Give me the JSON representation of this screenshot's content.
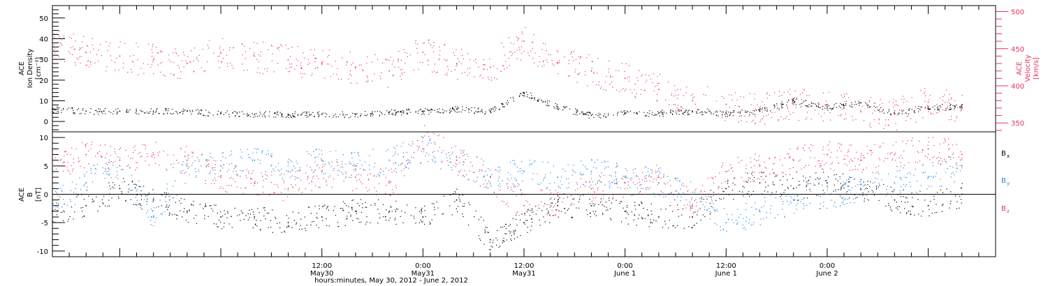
{
  "colors": {
    "black": "#000000",
    "pink": "#e8325a",
    "blue": "#1e88e5"
  },
  "chart_data": [
    {
      "type": "scatter",
      "panel": "plasma",
      "ylabel_left": [
        "ACE",
        "Ion Density",
        "[cm⁻³]"
      ],
      "ylabel_right": [
        "ACE",
        "Velocity",
        "[km/s]"
      ],
      "xrange_hours": [
        -20,
        92
      ],
      "ylim_left": [
        -5,
        56
      ],
      "ylim_right": [
        338,
        508
      ],
      "left_ticks": [
        0,
        10,
        20,
        30,
        40,
        50
      ],
      "right_ticks": [
        350,
        400,
        450,
        500
      ],
      "series": [
        {
          "name": "",
          "axis": "left",
          "color": "#000000",
          "x": [
            -20,
            -16,
            -12,
            -8,
            -4,
            0,
            4,
            8,
            12,
            16,
            20,
            24,
            28,
            32,
            36,
            40,
            44,
            48,
            52,
            56,
            60,
            64,
            68,
            72,
            76,
            80,
            84,
            88
          ],
          "y": [
            6,
            5,
            5,
            5,
            5,
            4,
            3.5,
            3.5,
            3.5,
            3.5,
            4.5,
            5,
            6,
            5,
            14,
            7,
            3,
            4,
            4,
            5,
            4,
            5,
            10,
            7,
            9,
            4,
            7,
            7
          ]
        },
        {
          "name": "",
          "axis": "right",
          "color": "#e8325a",
          "x": [
            -20,
            -16,
            -12,
            -8,
            -4,
            0,
            4,
            8,
            12,
            16,
            20,
            24,
            28,
            32,
            36,
            40,
            44,
            48,
            52,
            56,
            60,
            64,
            68,
            72,
            76,
            80,
            84,
            88
          ],
          "y": [
            455,
            445,
            440,
            435,
            430,
            445,
            440,
            435,
            430,
            425,
            420,
            445,
            430,
            425,
            460,
            430,
            420,
            410,
            395,
            380,
            375,
            370,
            375,
            375,
            365,
            362,
            378,
            370
          ]
        }
      ]
    },
    {
      "type": "scatter",
      "panel": "magnetic",
      "ylabel_left": [
        "ACE",
        "B",
        "[nT]"
      ],
      "xrange_hours": [
        -20,
        92
      ],
      "ylim": [
        -11,
        11
      ],
      "ticks": [
        -10,
        -5,
        0,
        5,
        10
      ],
      "x_tick_labels": [
        {
          "hours": 12,
          "time": "12:00",
          "date": "May30"
        },
        {
          "hours": 24,
          "time": "0:00",
          "date": "May31"
        },
        {
          "hours": 36,
          "time": "12:00",
          "date": "May31"
        },
        {
          "hours": 48,
          "time": "0:00",
          "date": "June 1"
        },
        {
          "hours": 60,
          "time": "12:00",
          "date": "June 1"
        },
        {
          "hours": 72,
          "time": "0:00",
          "date": "June 2"
        }
      ],
      "xlabel": "hours:minutes, May 30, 2012 - June  2, 2012",
      "series": [
        {
          "name": "Bx",
          "color": "#000000",
          "x": [
            -20,
            -16,
            -12,
            -8,
            -4,
            0,
            4,
            8,
            12,
            16,
            20,
            24,
            28,
            32,
            36,
            40,
            44,
            48,
            52,
            56,
            60,
            64,
            68,
            72,
            76,
            80,
            84,
            88
          ],
          "y": [
            -3,
            -2,
            1,
            -1,
            -3,
            -4,
            -4,
            -5,
            -4,
            -3,
            -3,
            -4,
            -1,
            -8,
            -5,
            -2,
            -2,
            -3,
            -4,
            -4,
            1,
            2,
            1,
            2,
            1,
            -1,
            -2,
            0
          ]
        },
        {
          "name": "By",
          "color": "#1e88e5",
          "x": [
            -20,
            -16,
            -12,
            -8,
            -4,
            0,
            4,
            8,
            12,
            16,
            20,
            24,
            28,
            32,
            36,
            40,
            44,
            48,
            52,
            56,
            60,
            64,
            68,
            72,
            76,
            80,
            84,
            88
          ],
          "y": [
            -2,
            2,
            5,
            -4,
            5,
            5,
            6,
            4,
            6,
            5,
            6,
            8,
            6,
            3,
            4,
            3,
            4,
            3,
            2,
            0,
            -5,
            -3,
            -1,
            0,
            1,
            2,
            3,
            5
          ]
        },
        {
          "name": "Bz",
          "color": "#e8325a",
          "x": [
            -20,
            -16,
            -12,
            -8,
            -4,
            0,
            4,
            8,
            12,
            16,
            20,
            24,
            28,
            32,
            36,
            40,
            44,
            48,
            52,
            56,
            60,
            64,
            68,
            72,
            76,
            80,
            84,
            88
          ],
          "y": [
            5,
            7,
            6,
            7,
            6,
            3,
            2,
            1,
            4,
            3,
            2,
            10,
            6,
            3,
            -2,
            -1,
            1,
            2,
            3,
            -2,
            4,
            5,
            6,
            7,
            6,
            7,
            8,
            7
          ]
        }
      ],
      "legend": [
        {
          "main": "B",
          "sub": "x",
          "color": "#000000"
        },
        {
          "main": "B",
          "sub": "y",
          "color": "#1e88e5"
        },
        {
          "main": "B",
          "sub": "z",
          "color": "#e8325a"
        }
      ]
    }
  ]
}
